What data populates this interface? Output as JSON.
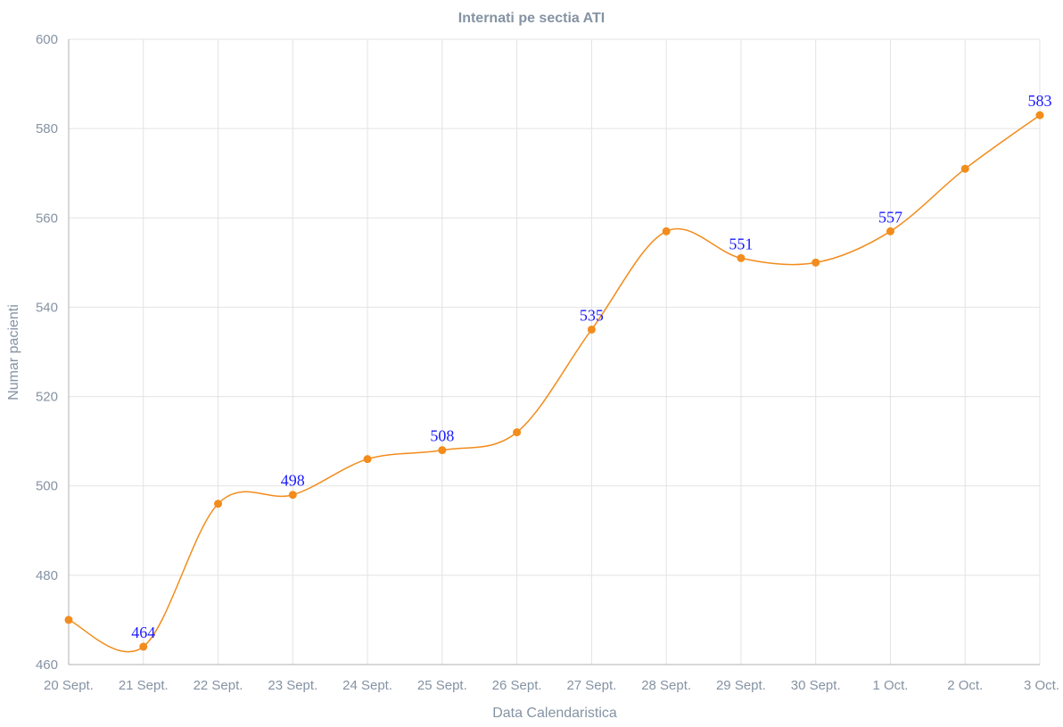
{
  "chart_data": {
    "type": "line",
    "title": "Internati pe sectia ATI",
    "xlabel": "Data Calendaristica",
    "ylabel": "Numar pacienti",
    "categories": [
      "20 Sept.",
      "21 Sept.",
      "22 Sept.",
      "23 Sept.",
      "24 Sept.",
      "25 Sept.",
      "26 Sept.",
      "27 Sept.",
      "28 Sept.",
      "29 Sept.",
      "30 Sept.",
      "1 Oct.",
      "2 Oct.",
      "3 Oct."
    ],
    "series": [
      {
        "values": [
          470,
          464,
          496,
          498,
          506,
          508,
          512,
          535,
          557,
          551,
          550,
          557,
          571,
          583
        ]
      }
    ],
    "data_labels": [
      "",
      "464",
      "",
      "498",
      "",
      "508",
      "",
      "535",
      "",
      "551",
      "",
      "557",
      "",
      "583"
    ],
    "ylim": [
      460,
      600
    ],
    "yticks": [
      460,
      480,
      500,
      520,
      540,
      560,
      580,
      600
    ],
    "grid": true,
    "smooth": true,
    "colors": {
      "line": "#f28c1c",
      "marker": "#f28c1c",
      "data_label": "#1a1aff",
      "text": "#8593a3",
      "grid": "#e3e3e3",
      "axis": "#b0b0b0"
    }
  }
}
